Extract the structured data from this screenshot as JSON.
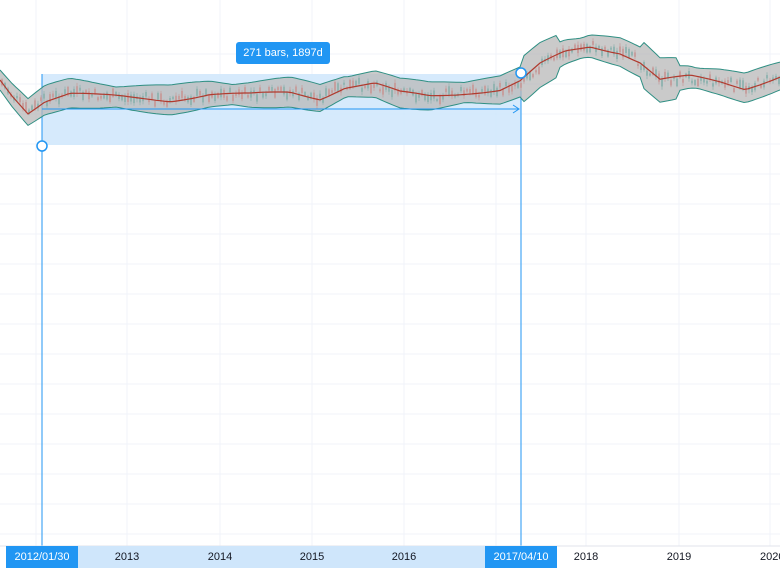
{
  "measure": {
    "label": "271 bars, 1897d",
    "start_date": "2012/01/30",
    "end_date": "2017/04/10"
  },
  "x_axis": {
    "ticks": [
      "2013",
      "2014",
      "2015",
      "2016",
      "2018",
      "2019",
      "2020"
    ]
  },
  "colors": {
    "band_fill": "#b8b8b8",
    "band_line": "#2f8f83",
    "basis_line": "#b03a2e",
    "candle_up": "#26a69a",
    "candle_down": "#ef5350",
    "accent": "#2196f3",
    "selection_fill": "#cfe6fb",
    "grid": "#f0f3fa"
  }
}
